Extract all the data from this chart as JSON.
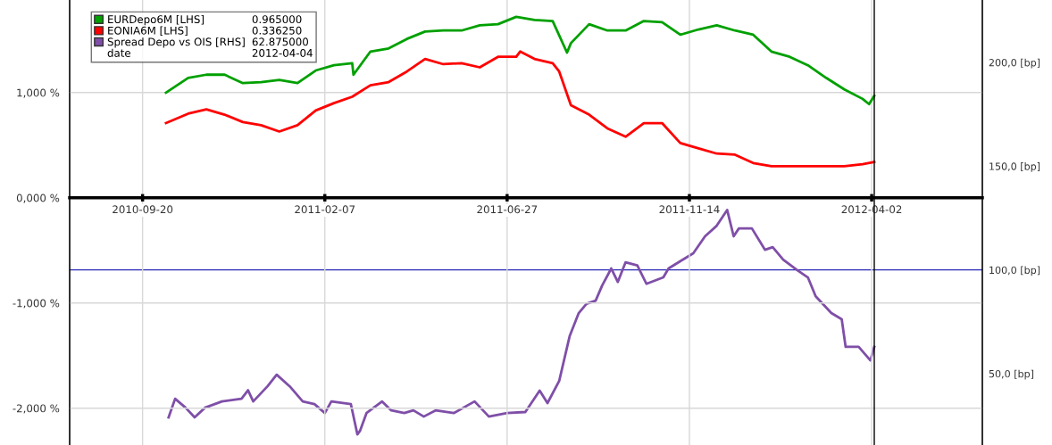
{
  "chart_data": {
    "type": "line",
    "xlim": [
      "2010-07-26",
      "2012-06-26"
    ],
    "xticks": [
      {
        "value": "2010-09-20",
        "label": "2010-09-20"
      },
      {
        "value": "2011-02-07",
        "label": "2011-02-07"
      },
      {
        "value": "2011-06-27",
        "label": "2011-06-27"
      },
      {
        "value": "2011-11-14",
        "label": "2011-11-14"
      },
      {
        "value": "2012-04-02",
        "label": "2012-04-02"
      }
    ],
    "ylim": [
      -2.35,
      1.88
    ],
    "yticks": [
      {
        "value": 1,
        "label": "1,000 %"
      },
      {
        "value": 0,
        "label": "0,000 %"
      },
      {
        "value": -1,
        "label": "-1,000 %"
      },
      {
        "value": -2,
        "label": "-2,000 %"
      }
    ],
    "y2lim": [
      15.6,
      230.1
    ],
    "y2ticks": [
      {
        "value": 200,
        "label": "200,0 [bp]"
      },
      {
        "value": 150,
        "label": "150,0 [bp]"
      },
      {
        "value": 100,
        "label": "100,0 [bp]"
      },
      {
        "value": 50,
        "label": "50,0 [bp]"
      }
    ],
    "grid": true,
    "legend": "top left",
    "marker": "none",
    "line_style": "solid",
    "series": [
      {
        "name": "EURDepo6M [LHS]",
        "color": "#00a000",
        "x": [
          "2010-10-08",
          "2010-10-25",
          "2010-11-08",
          "2010-11-22",
          "2010-12-06",
          "2010-12-20",
          "2011-01-03",
          "2011-01-17",
          "2011-01-31",
          "2011-02-14",
          "2011-02-28",
          "2011-03-01",
          "2011-03-14",
          "2011-03-28",
          "2011-04-11",
          "2011-04-25",
          "2011-05-09",
          "2011-05-23",
          "2011-06-06",
          "2011-06-20",
          "2011-07-04",
          "2011-07-18",
          "2011-08-01",
          "2011-08-12",
          "2011-08-15",
          "2011-08-29",
          "2011-09-12",
          "2011-09-26",
          "2011-10-10",
          "2011-10-24",
          "2011-11-07",
          "2011-11-21",
          "2011-12-05",
          "2011-12-19",
          "2012-01-02",
          "2012-01-16",
          "2012-01-30",
          "2012-02-13",
          "2012-02-27",
          "2012-03-12",
          "2012-03-26",
          "2012-03-31",
          "2012-04-04"
        ],
        "values": [
          1.0,
          1.14,
          1.17,
          1.17,
          1.09,
          1.1,
          1.12,
          1.09,
          1.21,
          1.26,
          1.28,
          1.17,
          1.39,
          1.42,
          1.51,
          1.58,
          1.59,
          1.59,
          1.64,
          1.65,
          1.72,
          1.69,
          1.68,
          1.38,
          1.47,
          1.65,
          1.59,
          1.59,
          1.68,
          1.67,
          1.55,
          1.6,
          1.64,
          1.59,
          1.55,
          1.39,
          1.34,
          1.26,
          1.14,
          1.03,
          0.94,
          0.89,
          0.97
        ]
      },
      {
        "name": "EONIA6M [LHS]",
        "color": "#ff0000",
        "x": [
          "2010-10-08",
          "2010-10-25",
          "2010-11-08",
          "2010-11-22",
          "2010-12-06",
          "2010-12-20",
          "2011-01-03",
          "2011-01-17",
          "2011-01-31",
          "2011-02-14",
          "2011-02-28",
          "2011-03-14",
          "2011-03-28",
          "2011-04-11",
          "2011-04-25",
          "2011-05-09",
          "2011-05-23",
          "2011-06-06",
          "2011-06-20",
          "2011-07-04",
          "2011-07-07",
          "2011-07-18",
          "2011-08-01",
          "2011-08-06",
          "2011-08-15",
          "2011-08-29",
          "2011-09-12",
          "2011-09-26",
          "2011-10-10",
          "2011-10-24",
          "2011-11-07",
          "2011-11-21",
          "2011-12-05",
          "2011-12-19",
          "2012-01-02",
          "2012-01-16",
          "2012-01-30",
          "2012-02-13",
          "2012-02-27",
          "2012-03-12",
          "2012-03-26",
          "2012-04-04"
        ],
        "values": [
          0.71,
          0.8,
          0.84,
          0.79,
          0.72,
          0.69,
          0.63,
          0.69,
          0.83,
          0.9,
          0.96,
          1.07,
          1.1,
          1.2,
          1.32,
          1.27,
          1.28,
          1.24,
          1.34,
          1.34,
          1.39,
          1.32,
          1.28,
          1.2,
          0.88,
          0.79,
          0.66,
          0.58,
          0.71,
          0.71,
          0.52,
          0.47,
          0.42,
          0.41,
          0.33,
          0.3,
          0.3,
          0.3,
          0.3,
          0.3,
          0.32,
          0.34
        ]
      },
      {
        "name": "Spread Depo vs OIS [RHS]",
        "color": "#7f4fa8",
        "axis": "y2",
        "x": [
          "2010-10-10",
          "2010-10-15",
          "2010-10-23",
          "2010-10-30",
          "2010-11-07",
          "2010-11-20",
          "2010-12-05",
          "2010-12-10",
          "2010-12-14",
          "2010-12-25",
          "2011-01-01",
          "2011-01-11",
          "2011-01-21",
          "2011-01-30",
          "2011-02-07",
          "2011-02-12",
          "2011-02-27",
          "2011-03-04",
          "2011-03-06",
          "2011-03-11",
          "2011-03-23",
          "2011-03-30",
          "2011-04-09",
          "2011-04-16",
          "2011-04-24",
          "2011-05-03",
          "2011-05-17",
          "2011-06-02",
          "2011-06-13",
          "2011-06-27",
          "2011-07-11",
          "2011-07-22",
          "2011-07-28",
          "2011-08-06",
          "2011-08-14",
          "2011-08-21",
          "2011-08-27",
          "2011-09-03",
          "2011-09-08",
          "2011-09-15",
          "2011-09-20",
          "2011-09-26",
          "2011-10-05",
          "2011-10-12",
          "2011-10-25",
          "2011-10-29",
          "2011-11-08",
          "2011-11-17",
          "2011-11-26",
          "2011-12-05",
          "2011-12-13",
          "2011-12-18",
          "2011-12-22",
          "2012-01-01",
          "2012-01-11",
          "2012-01-17",
          "2012-01-25",
          "2012-02-05",
          "2012-02-13",
          "2012-02-19",
          "2012-03-02",
          "2012-03-10",
          "2012-03-13",
          "2012-03-19",
          "2012-03-23",
          "2012-04-01",
          "2012-04-04"
        ],
        "values": [
          28.9,
          37.9,
          33.6,
          28.9,
          33.6,
          36.6,
          37.9,
          42.0,
          36.6,
          43.9,
          49.5,
          43.9,
          36.6,
          35.3,
          31.0,
          36.6,
          35.3,
          20.7,
          22.4,
          31.0,
          36.6,
          32.3,
          31.0,
          32.3,
          29.3,
          32.3,
          31.0,
          36.6,
          29.3,
          31.0,
          31.5,
          41.8,
          35.8,
          46.5,
          68.0,
          79.2,
          83.7,
          85.2,
          92.5,
          100.7,
          94.2,
          103.7,
          102.2,
          93.3,
          96.4,
          100.7,
          104.6,
          108.0,
          116.2,
          121.3,
          128.9,
          116.2,
          120.0,
          120.0,
          109.7,
          111.0,
          105.0,
          99.8,
          96.4,
          87.3,
          79.2,
          76.2,
          62.9,
          62.9,
          62.9,
          56.4,
          62.9
        ]
      }
    ],
    "ref_lines": [
      {
        "axis": "y2",
        "value": 100,
        "color": "#2a2ab8"
      },
      {
        "axis": "x",
        "value": "2012-04-04",
        "color": "#000000"
      }
    ],
    "annotations": [
      "0.965000",
      "0.336250",
      "62.875000",
      "date",
      "2012-04-04"
    ]
  }
}
